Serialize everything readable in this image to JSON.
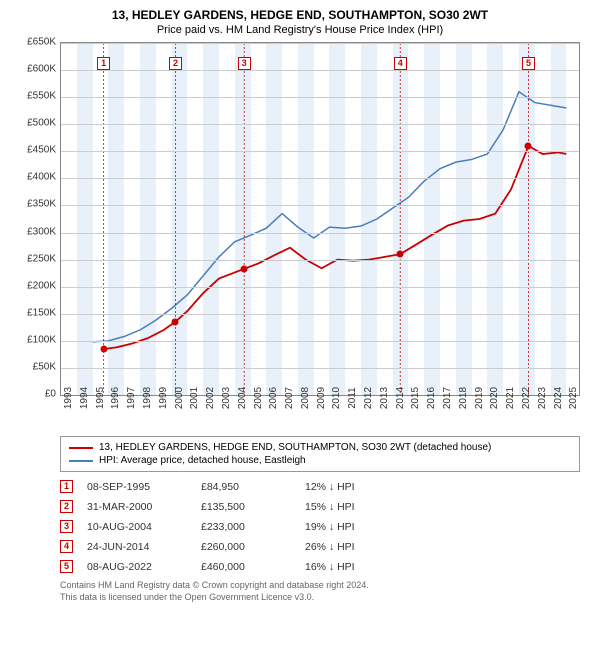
{
  "title": "13, HEDLEY GARDENS, HEDGE END, SOUTHAMPTON, SO30 2WT",
  "subtitle": "Price paid vs. HM Land Registry's House Price Index (HPI)",
  "chart": {
    "type": "line",
    "x_min": 1993,
    "x_max": 2025.8,
    "y_min": 0,
    "y_max": 650000,
    "y_ticks": [
      0,
      50000,
      100000,
      150000,
      200000,
      250000,
      300000,
      350000,
      400000,
      450000,
      500000,
      550000,
      600000,
      650000
    ],
    "y_tick_labels": [
      "£0",
      "£50K",
      "£100K",
      "£150K",
      "£200K",
      "£250K",
      "£300K",
      "£350K",
      "£400K",
      "£450K",
      "£500K",
      "£550K",
      "£600K",
      "£650K"
    ],
    "x_ticks": [
      1993,
      1994,
      1995,
      1996,
      1997,
      1998,
      1999,
      2000,
      2001,
      2002,
      2003,
      2004,
      2005,
      2006,
      2007,
      2008,
      2009,
      2010,
      2011,
      2012,
      2013,
      2014,
      2015,
      2016,
      2017,
      2018,
      2019,
      2020,
      2021,
      2022,
      2023,
      2024,
      2025
    ],
    "grid_color": "#cccccc",
    "band_color": "#e8f0fa",
    "series": [
      {
        "id": "hpi",
        "label": "HPI: Average price, detached house, Eastleigh",
        "color": "#4a7ebb",
        "width": 1.5,
        "points": [
          [
            1995.0,
            98000
          ],
          [
            1996.0,
            100000
          ],
          [
            1997.0,
            108000
          ],
          [
            1998.0,
            120000
          ],
          [
            1999.0,
            138000
          ],
          [
            2000.0,
            160000
          ],
          [
            2001.0,
            185000
          ],
          [
            2002.0,
            220000
          ],
          [
            2003.0,
            255000
          ],
          [
            2004.0,
            283000
          ],
          [
            2005.0,
            295000
          ],
          [
            2006.0,
            308000
          ],
          [
            2007.0,
            335000
          ],
          [
            2008.0,
            310000
          ],
          [
            2009.0,
            290000
          ],
          [
            2010.0,
            310000
          ],
          [
            2011.0,
            308000
          ],
          [
            2012.0,
            312000
          ],
          [
            2013.0,
            325000
          ],
          [
            2014.0,
            345000
          ],
          [
            2015.0,
            365000
          ],
          [
            2016.0,
            395000
          ],
          [
            2017.0,
            418000
          ],
          [
            2018.0,
            430000
          ],
          [
            2019.0,
            435000
          ],
          [
            2020.0,
            445000
          ],
          [
            2021.0,
            490000
          ],
          [
            2022.0,
            560000
          ],
          [
            2023.0,
            540000
          ],
          [
            2024.0,
            535000
          ],
          [
            2025.0,
            530000
          ]
        ]
      },
      {
        "id": "property",
        "label": "13, HEDLEY GARDENS, HEDGE END, SOUTHAMPTON, SO30 2WT (detached house)",
        "color": "#cc0000",
        "width": 1.8,
        "points": [
          [
            1995.7,
            84950
          ],
          [
            1996.5,
            88000
          ],
          [
            1997.5,
            95000
          ],
          [
            1998.5,
            105000
          ],
          [
            1999.5,
            120000
          ],
          [
            2000.25,
            135500
          ],
          [
            2001.0,
            155000
          ],
          [
            2002.0,
            188000
          ],
          [
            2003.0,
            215000
          ],
          [
            2004.6,
            233000
          ],
          [
            2005.5,
            243000
          ],
          [
            2006.5,
            258000
          ],
          [
            2007.5,
            272000
          ],
          [
            2008.5,
            250000
          ],
          [
            2009.5,
            234000
          ],
          [
            2010.5,
            250000
          ],
          [
            2011.5,
            248000
          ],
          [
            2012.5,
            250000
          ],
          [
            2013.5,
            255000
          ],
          [
            2014.48,
            260000
          ],
          [
            2015.5,
            278000
          ],
          [
            2016.5,
            296000
          ],
          [
            2017.5,
            313000
          ],
          [
            2018.5,
            322000
          ],
          [
            2019.5,
            325000
          ],
          [
            2020.5,
            335000
          ],
          [
            2021.5,
            380000
          ],
          [
            2022.6,
            460000
          ],
          [
            2023.5,
            445000
          ],
          [
            2024.5,
            448000
          ],
          [
            2025.0,
            445000
          ]
        ]
      }
    ],
    "sale_markers": [
      {
        "n": "1",
        "year": 1995.7,
        "price": 84950,
        "marker_top_offset": 14
      },
      {
        "n": "2",
        "year": 2000.25,
        "price": 135500,
        "marker_top_offset": 14
      },
      {
        "n": "3",
        "year": 2004.6,
        "price": 233000,
        "marker_top_offset": 14
      },
      {
        "n": "4",
        "year": 2014.48,
        "price": 260000,
        "marker_top_offset": 14
      },
      {
        "n": "5",
        "year": 2022.6,
        "price": 460000,
        "marker_top_offset": 14
      }
    ]
  },
  "legend": {
    "items": [
      {
        "color": "#cc0000",
        "label": "13, HEDLEY GARDENS, HEDGE END, SOUTHAMPTON, SO30 2WT (detached house)"
      },
      {
        "color": "#4a7ebb",
        "label": "HPI: Average price, detached house, Eastleigh"
      }
    ]
  },
  "sales_table": [
    {
      "n": "1",
      "date": "08-SEP-1995",
      "price": "£84,950",
      "pct": "12% ↓ HPI"
    },
    {
      "n": "2",
      "date": "31-MAR-2000",
      "price": "£135,500",
      "pct": "15% ↓ HPI"
    },
    {
      "n": "3",
      "date": "10-AUG-2004",
      "price": "£233,000",
      "pct": "19% ↓ HPI"
    },
    {
      "n": "4",
      "date": "24-JUN-2014",
      "price": "£260,000",
      "pct": "26% ↓ HPI"
    },
    {
      "n": "5",
      "date": "08-AUG-2022",
      "price": "£460,000",
      "pct": "16% ↓ HPI"
    }
  ],
  "footer": {
    "line1": "Contains HM Land Registry data © Crown copyright and database right 2024.",
    "line2": "This data is licensed under the Open Government Licence v3.0."
  }
}
